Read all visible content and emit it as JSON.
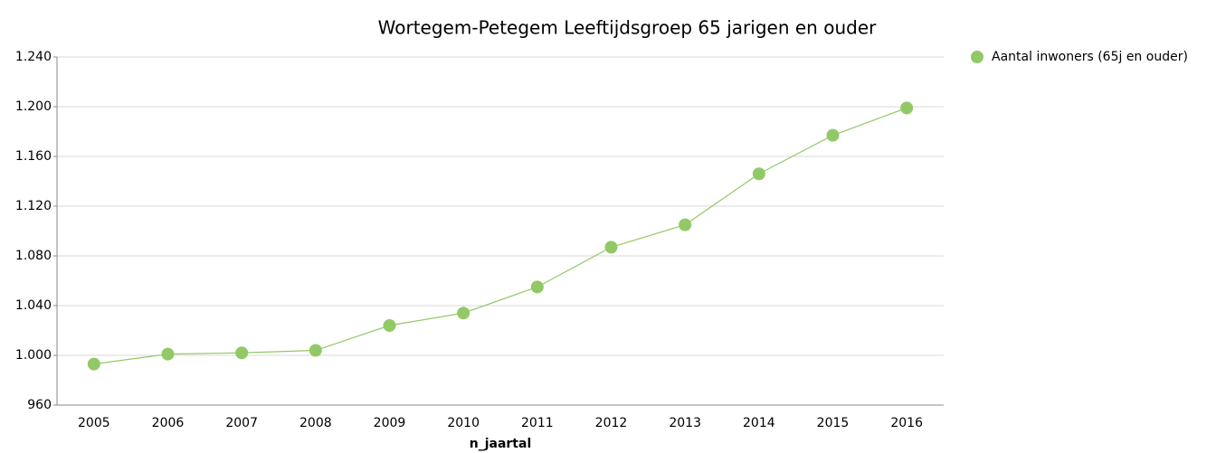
{
  "chart_data": {
    "type": "line",
    "title": "Wortegem-Petegem  Leeftijdsgroep 65 jarigen en ouder",
    "x_label": "n_jaartal",
    "categories": [
      "2005",
      "2006",
      "2007",
      "2008",
      "2009",
      "2010",
      "2011",
      "2012",
      "2013",
      "2014",
      "2015",
      "2016"
    ],
    "series": [
      {
        "name": "Aantal inwoners (65j en ouder)",
        "color": "#92c966",
        "values": [
          993,
          1001,
          1002,
          1004,
          1024,
          1034,
          1055,
          1087,
          1105,
          1146,
          1177,
          1199
        ]
      }
    ],
    "ylim": [
      960,
      1240
    ],
    "yticks": [
      960,
      {
        "value": 1000,
        "label": "1.000"
      },
      {
        "value": 1040,
        "label": "1.040"
      },
      {
        "value": 1080,
        "label": "1.080"
      },
      {
        "value": 1120,
        "label": "1.120"
      },
      {
        "value": 1160,
        "label": "1.160"
      },
      {
        "value": 1200,
        "label": "1.200"
      },
      {
        "value": 1240,
        "label": "1.240"
      }
    ],
    "grid": true,
    "legend": "right"
  }
}
